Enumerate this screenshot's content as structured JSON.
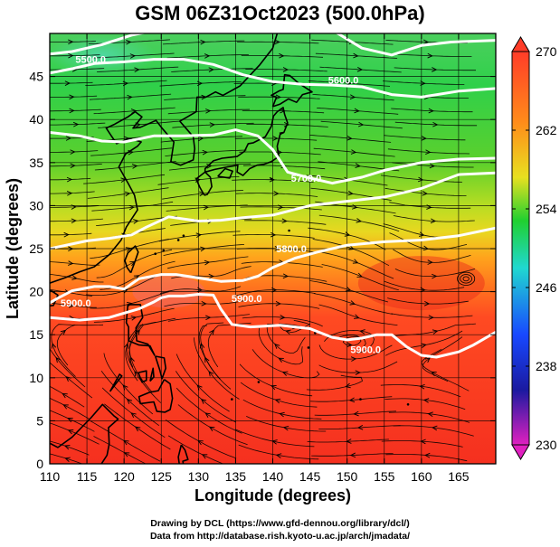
{
  "title": "GSM 06Z31Oct2023 (500.0hPa)",
  "axes": {
    "xlabel": "Longitude (degrees)",
    "ylabel": "Latitude  (degrees)",
    "xlim": [
      110,
      170
    ],
    "ylim": [
      0,
      50
    ],
    "xticks": [
      "110",
      "115",
      "120",
      "125",
      "130",
      "135",
      "140",
      "145",
      "150",
      "155",
      "160",
      "165"
    ],
    "yticks": [
      "0",
      "5",
      "10",
      "15",
      "20",
      "25",
      "30",
      "35",
      "40",
      "45"
    ]
  },
  "colorbar": {
    "min": 230,
    "max": 270,
    "labels": [
      "270",
      "262",
      "254",
      "246",
      "238",
      "230"
    ],
    "colors": {
      "top": "#ff3c28",
      "orange": "#ff8c1a",
      "yellow": "#e8e020",
      "green": "#20d030",
      "cyan": "#20d8d0",
      "blue": "#1848ff",
      "navy": "#1a1aa0",
      "bottom": "#e020c0"
    }
  },
  "contours": {
    "levels": [
      "5900.0",
      "5800.0",
      "5700.0",
      "5600.0",
      "5500.0"
    ],
    "labels": [
      {
        "text": "5900.0",
        "lon": 113.5,
        "lat": 18.7
      },
      {
        "text": "5900.0",
        "lon": 136.5,
        "lat": 19.2
      },
      {
        "text": "5900.0",
        "lon": 152.5,
        "lat": 13.3
      },
      {
        "text": "5800.0",
        "lon": 142.5,
        "lat": 25.0
      },
      {
        "text": "5700.0",
        "lon": 144.5,
        "lat": 33.2
      },
      {
        "text": "5600.0",
        "lon": 149.5,
        "lat": 44.6
      },
      {
        "text": "5500.0",
        "lon": 115.5,
        "lat": 47.0
      }
    ]
  },
  "credits": {
    "line1": "Drawing by DCL (https://www.gfd-dennou.org/library/dcl/)",
    "line2": "Data from http://database.rish.kyoto-u.ac.jp/arch/jmadata/"
  }
}
